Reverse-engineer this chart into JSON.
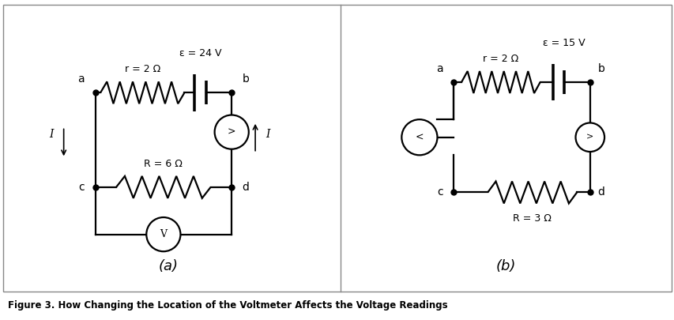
{
  "fig_width": 8.54,
  "fig_height": 4.05,
  "bg_color": "#ffffff",
  "line_color": "#000000",
  "line_width": 1.6,
  "title": "Figure 3. How Changing the Location of the Voltmeter Affects the Voltage Readings",
  "label_a": "(a)",
  "label_b": "(b)",
  "circuit_a": {
    "eps_label": "ε = 24 V",
    "r_label": "r = 2 Ω",
    "R_label": "R = 6 Ω",
    "node_a": "a",
    "node_b": "b",
    "node_c": "c",
    "node_d": "d",
    "current_label": "I"
  },
  "circuit_b": {
    "eps_label": "ε = 15 V",
    "r_label": "r = 2 Ω",
    "R_label": "R = 3 Ω",
    "node_a": "a",
    "node_b": "b",
    "node_c": "c",
    "node_d": "d"
  }
}
